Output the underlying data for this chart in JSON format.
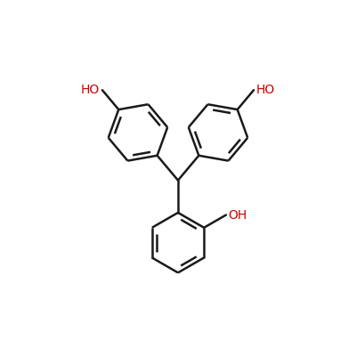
{
  "background_color": "#ffffff",
  "bond_color": "#1a1a1a",
  "oh_color": "#cc0000",
  "line_width": 1.8,
  "fig_size": [
    4.0,
    4.0
  ],
  "dpi": 100,
  "xlim": [
    -3.8,
    3.8
  ],
  "ylim": [
    -2.5,
    3.5
  ]
}
